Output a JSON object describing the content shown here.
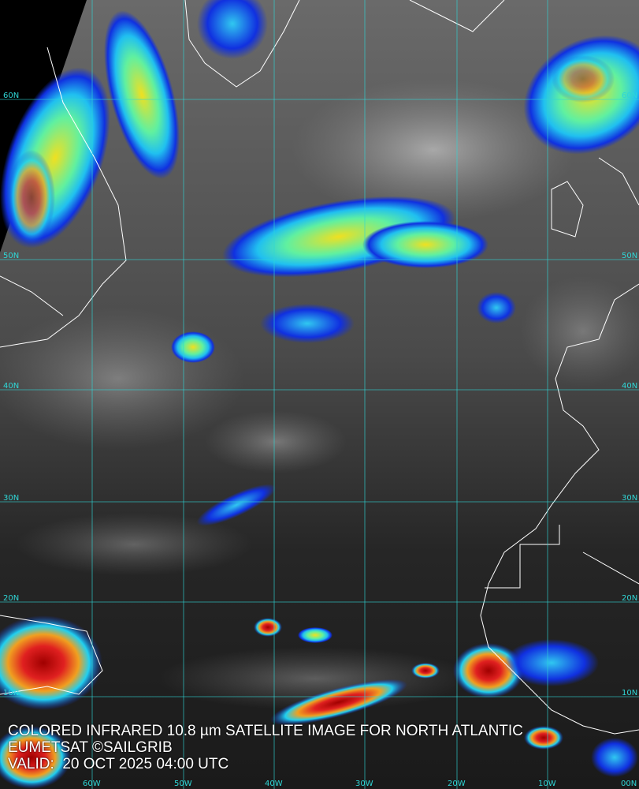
{
  "caption": {
    "title": "COLORED INFRARED 10.8 µm SATELLITE IMAGE FOR NORTH ATLANTIC",
    "source": "EUMETSAT ©SAILGRIB",
    "valid": "VALID:  20 OCT 2025 04:00 UTC"
  },
  "grid": {
    "lat_labels": [
      "60N",
      "50N",
      "40N",
      "30N",
      "20N",
      "10N"
    ],
    "lon_labels": [
      "60W",
      "50W",
      "40W",
      "30W",
      "20W",
      "10W",
      "00N"
    ],
    "color": "#2fd6d6"
  },
  "colors": {
    "cold_top": "#d01010",
    "high_cloud": "#f0e020",
    "mid_cloud": "#20d0f0",
    "low_cloud": "#1030e0",
    "coastline": "#ffffff"
  }
}
